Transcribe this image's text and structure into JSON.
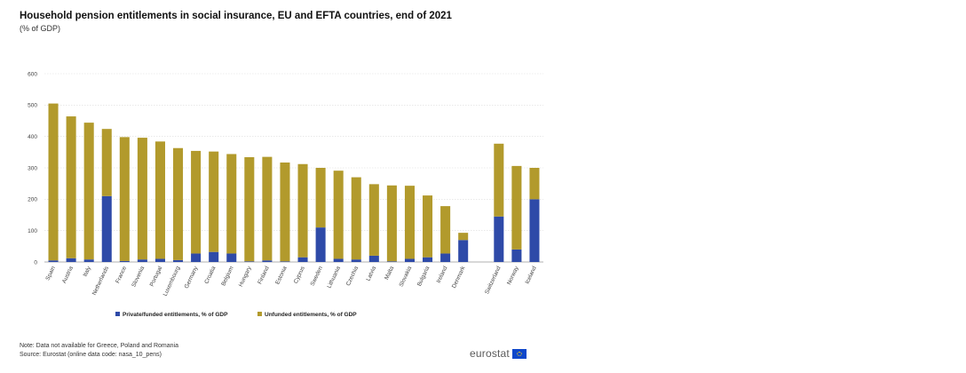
{
  "header": {
    "title": "Household pension entitlements in social insurance, EU and EFTA countries, end of 2021",
    "subtitle": "(% of GDP)"
  },
  "footer": {
    "note": "Note: Data not available for Greece, Poland and Romania",
    "source": "Source: Eurostat (online data code: nasa_10_pens)",
    "logo_text": "eurostat"
  },
  "chart_data": {
    "type": "bar",
    "stacked": true,
    "title": "Household pension entitlements in social insurance, EU and EFTA countries, end of 2021",
    "subtitle": "(% of GDP)",
    "ylim": [
      0,
      600
    ],
    "yticks": [
      0,
      100,
      200,
      300,
      400,
      500,
      600
    ],
    "grid": true,
    "legend_position": "bottom",
    "categories": [
      "Spain",
      "Austria",
      "Italy",
      "Netherlands",
      "France",
      "Slovenia",
      "Portugal",
      "Luxembourg",
      "Germany",
      "Croatia",
      "Belgium",
      "Hungary",
      "Finland",
      "Estonia",
      "Cyprus",
      "Sweden",
      "Lithuania",
      "Czechia",
      "Latvia",
      "Malta",
      "Slovakia",
      "Bulgaria",
      "Ireland",
      "Denmark",
      "Switzerland",
      "Norway",
      "Iceland"
    ],
    "group_gap_after": "Denmark",
    "series": [
      {
        "name": "Private/funded entitlements, % of GDP",
        "color": "#2e4aa8",
        "values": [
          5,
          12,
          8,
          210,
          3,
          8,
          10,
          6,
          27,
          32,
          27,
          2,
          5,
          2,
          15,
          110,
          10,
          8,
          20,
          2,
          10,
          15,
          27,
          70,
          145,
          40,
          200
        ]
      },
      {
        "name": "Unfunded entitlements, % of GDP",
        "color": "#b29a2c",
        "values": [
          500,
          452,
          436,
          214,
          395,
          388,
          374,
          357,
          327,
          320,
          317,
          332,
          330,
          315,
          297,
          190,
          281,
          262,
          228,
          242,
          233,
          197,
          151,
          23,
          232,
          266,
          100
        ]
      }
    ]
  }
}
